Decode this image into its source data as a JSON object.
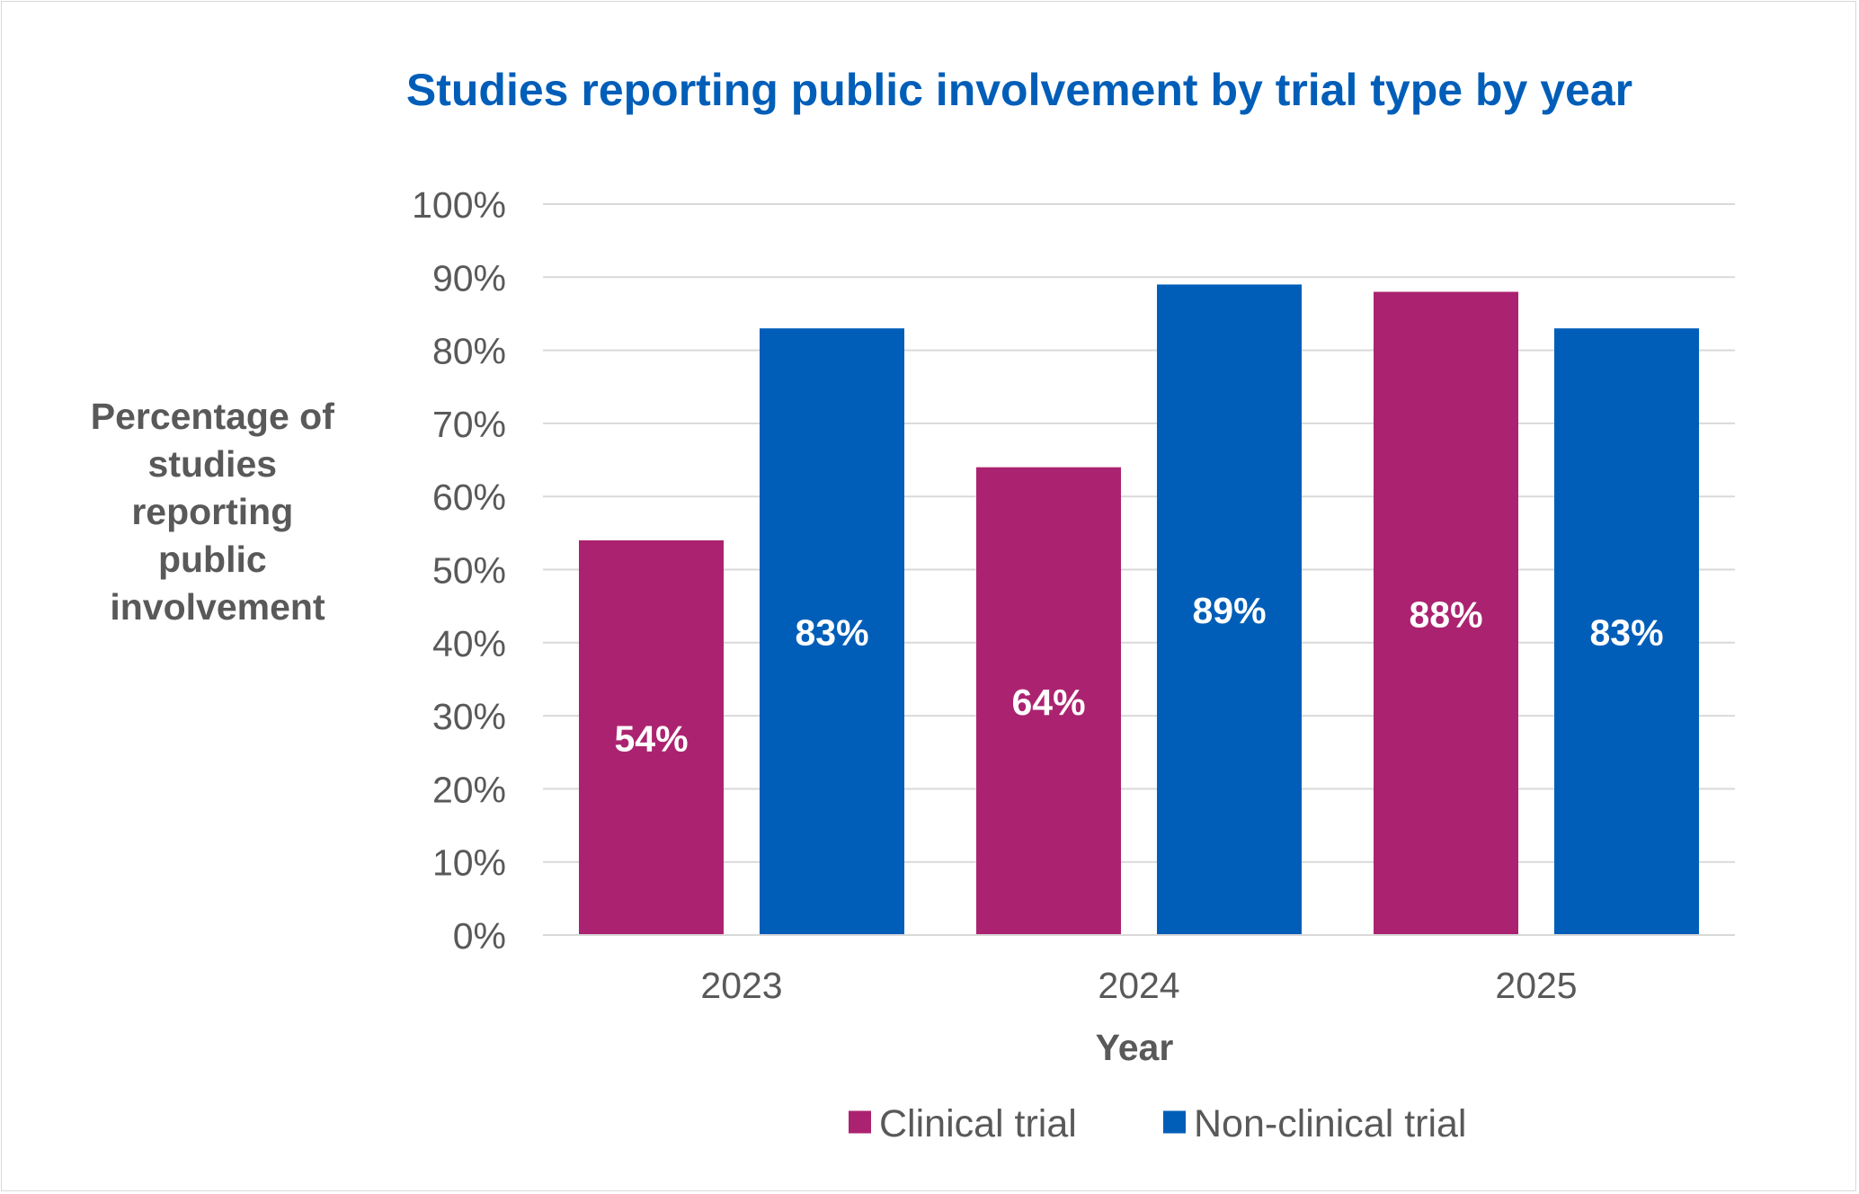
{
  "chart_data": {
    "type": "bar",
    "title": "Studies reporting public involvement by trial type by year",
    "ylabel_lines": [
      "Percentage of",
      "studies",
      "reporting",
      "public",
      "involvement"
    ],
    "xlabel": "Year",
    "categories": [
      "2023",
      "2024",
      "2025"
    ],
    "series": [
      {
        "name": "Clinical trial",
        "values": [
          54,
          64,
          88
        ],
        "labels": [
          "54%",
          "64%",
          "88%"
        ],
        "color": "#ab2370"
      },
      {
        "name": "Non-clinical trial",
        "values": [
          83,
          89,
          83
        ],
        "labels": [
          "83%",
          "89%",
          "83%"
        ],
        "color": "#005eb8"
      }
    ],
    "ylim": [
      0,
      100
    ],
    "y_ticks": [
      "0%",
      "10%",
      "20%",
      "30%",
      "40%",
      "50%",
      "60%",
      "70%",
      "80%",
      "90%",
      "100%"
    ],
    "grid": true,
    "legend_position": "bottom",
    "colors": {
      "title": "#005eb8",
      "axis_text": "#595959",
      "gridline": "#d9d9d9"
    }
  }
}
